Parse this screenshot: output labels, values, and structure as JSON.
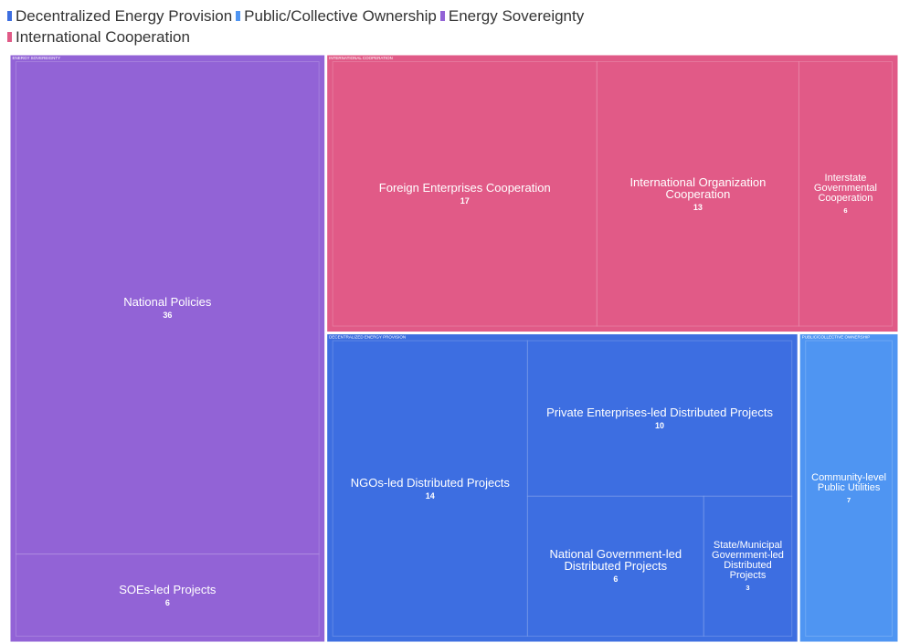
{
  "chart_data": {
    "type": "treemap",
    "series": [
      {
        "name": "Decentralized Energy Provision",
        "color": "#3d6ee0",
        "categories": [
          "NGOs-led Distributed Projects",
          "Private Enterprises-led Distributed Projects",
          "National Government-led Distributed Projects",
          "State/Municipal Government-led Distributed Projects"
        ],
        "values": [
          14,
          10,
          6,
          3
        ]
      },
      {
        "name": "Public/Collective Ownership",
        "color": "#4f95f2",
        "categories": [
          "Community-level Public Utilities"
        ],
        "values": [
          7
        ]
      },
      {
        "name": "Energy Sovereignty",
        "color": "#9263d6",
        "categories": [
          "National Policies",
          "SOEs-led Projects"
        ],
        "values": [
          36,
          6
        ]
      },
      {
        "name": "International Cooperation",
        "color": "#e05a87",
        "categories": [
          "Foreign Enterprises Cooperation",
          "International Organization Cooperation",
          "Interstate Governmental Cooperation"
        ],
        "values": [
          17,
          13,
          6
        ]
      }
    ]
  }
}
